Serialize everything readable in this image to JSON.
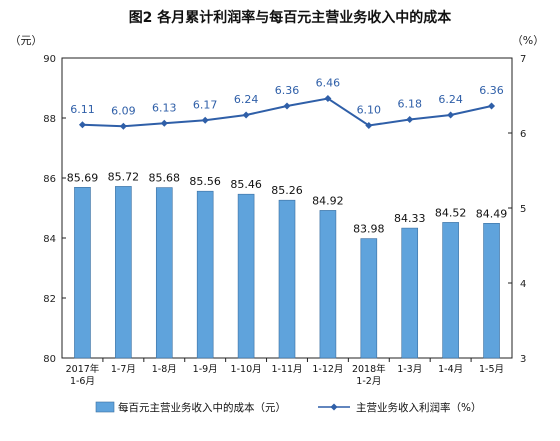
{
  "chart_data": {
    "type": "bar+line",
    "title": "图2 各月累计利润率与每百元主营业务收入中的成本",
    "left_unit": "（元）",
    "right_unit": "（%）",
    "categories": [
      [
        "2017年",
        "1-6月"
      ],
      [
        "1-7月"
      ],
      [
        "1-8月"
      ],
      [
        "1-9月"
      ],
      [
        "1-10月"
      ],
      [
        "1-11月"
      ],
      [
        "1-12月"
      ],
      [
        "2018年",
        "1-2月"
      ],
      [
        "1-3月"
      ],
      [
        "1-4月"
      ],
      [
        "1-5月"
      ]
    ],
    "series": [
      {
        "name": "每百元主营业务收入中的成本（元）",
        "type": "bar",
        "axis": "left",
        "color": "#5fa3dc",
        "values": [
          85.69,
          85.72,
          85.68,
          85.56,
          85.46,
          85.26,
          84.92,
          83.98,
          84.33,
          84.52,
          84.49
        ]
      },
      {
        "name": "主营业务收入利润率（%）",
        "type": "line",
        "axis": "right",
        "color": "#2f5fa8",
        "values": [
          6.11,
          6.09,
          6.13,
          6.17,
          6.24,
          6.36,
          6.46,
          6.1,
          6.18,
          6.24,
          6.36
        ]
      }
    ],
    "left_axis": {
      "min": 80,
      "max": 90,
      "ticks": [
        80,
        82,
        84,
        86,
        88,
        90
      ]
    },
    "right_axis": {
      "min": 3,
      "max": 7,
      "ticks": [
        3,
        4,
        5,
        6,
        7
      ]
    },
    "legend_position": "bottom",
    "grid": false
  }
}
